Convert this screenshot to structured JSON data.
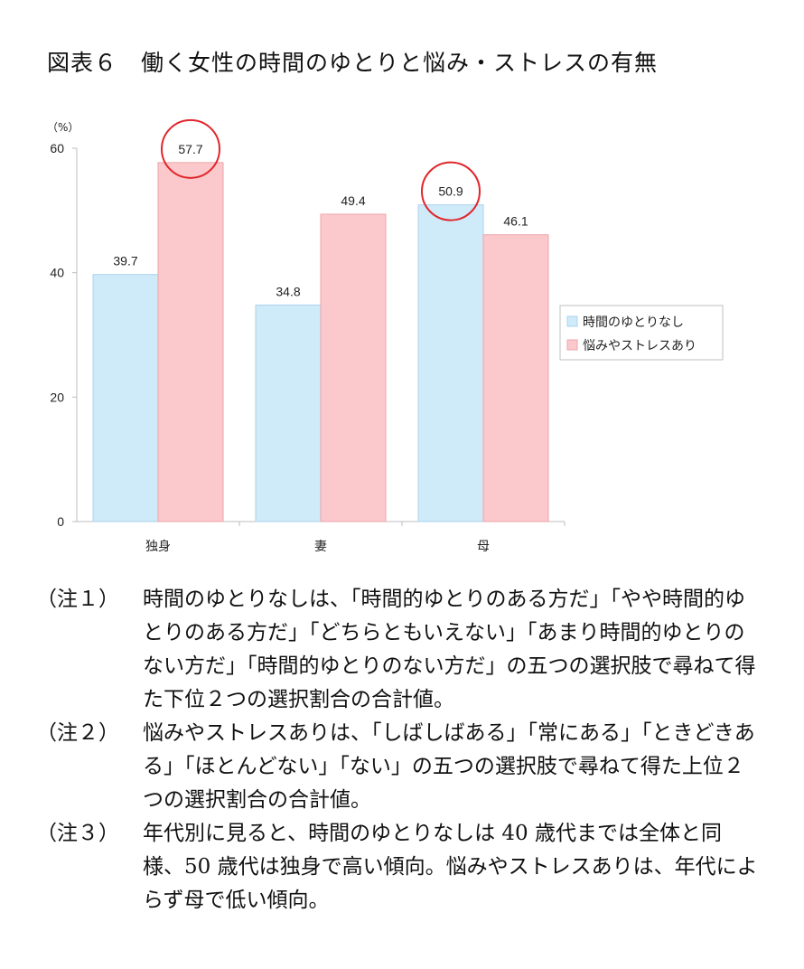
{
  "title": "図表６　働く女性の時間のゆとりと悩み・ストレスの有無",
  "chart_data": {
    "type": "bar",
    "unit_label": "（%）",
    "categories": [
      "独身",
      "妻",
      "母"
    ],
    "series": [
      {
        "name": "時間のゆとりなし",
        "values": [
          39.7,
          34.8,
          50.9
        ],
        "labels": [
          "39.7",
          "34.8",
          "50.9"
        ],
        "color": "#cfeaf9",
        "stroke": "#a9d4ee"
      },
      {
        "name": "悩みやストレスあり",
        "values": [
          57.7,
          49.4,
          46.1
        ],
        "labels": [
          "57.7",
          "49.4",
          "46.1"
        ],
        "color": "#fbc8cb",
        "stroke": "#eea6ab"
      }
    ],
    "ylim": [
      0,
      60
    ],
    "yticks": [
      "0",
      "20",
      "40",
      "60"
    ],
    "highlighted": [
      "57.7",
      "50.9"
    ],
    "highlight_color": "#e0262b",
    "legend_position": "right"
  },
  "notes": [
    {
      "label": "（注１）",
      "text": "時間のゆとりなしは、「時間的ゆとりのある方だ」「やや時間的ゆとりのある方だ」「どちらともいえない」「あまり時間的ゆとりのない方だ」「時間的ゆとりのない方だ」の五つの選択肢で尋ねて得た下位２つの選択割合の合計値。"
    },
    {
      "label": "（注２）",
      "text": "悩みやストレスありは、「しばしばある」「常にある」「ときどきある」「ほとんどない」「ない」の五つの選択肢で尋ねて得た上位２つの選択割合の合計値。"
    },
    {
      "label": "（注３）",
      "text": "年代別に見ると、時間のゆとりなしは 40 歳代までは全体と同様、50 歳代は独身で高い傾向。悩みやストレスありは、年代によらず母で低い傾向。"
    }
  ]
}
